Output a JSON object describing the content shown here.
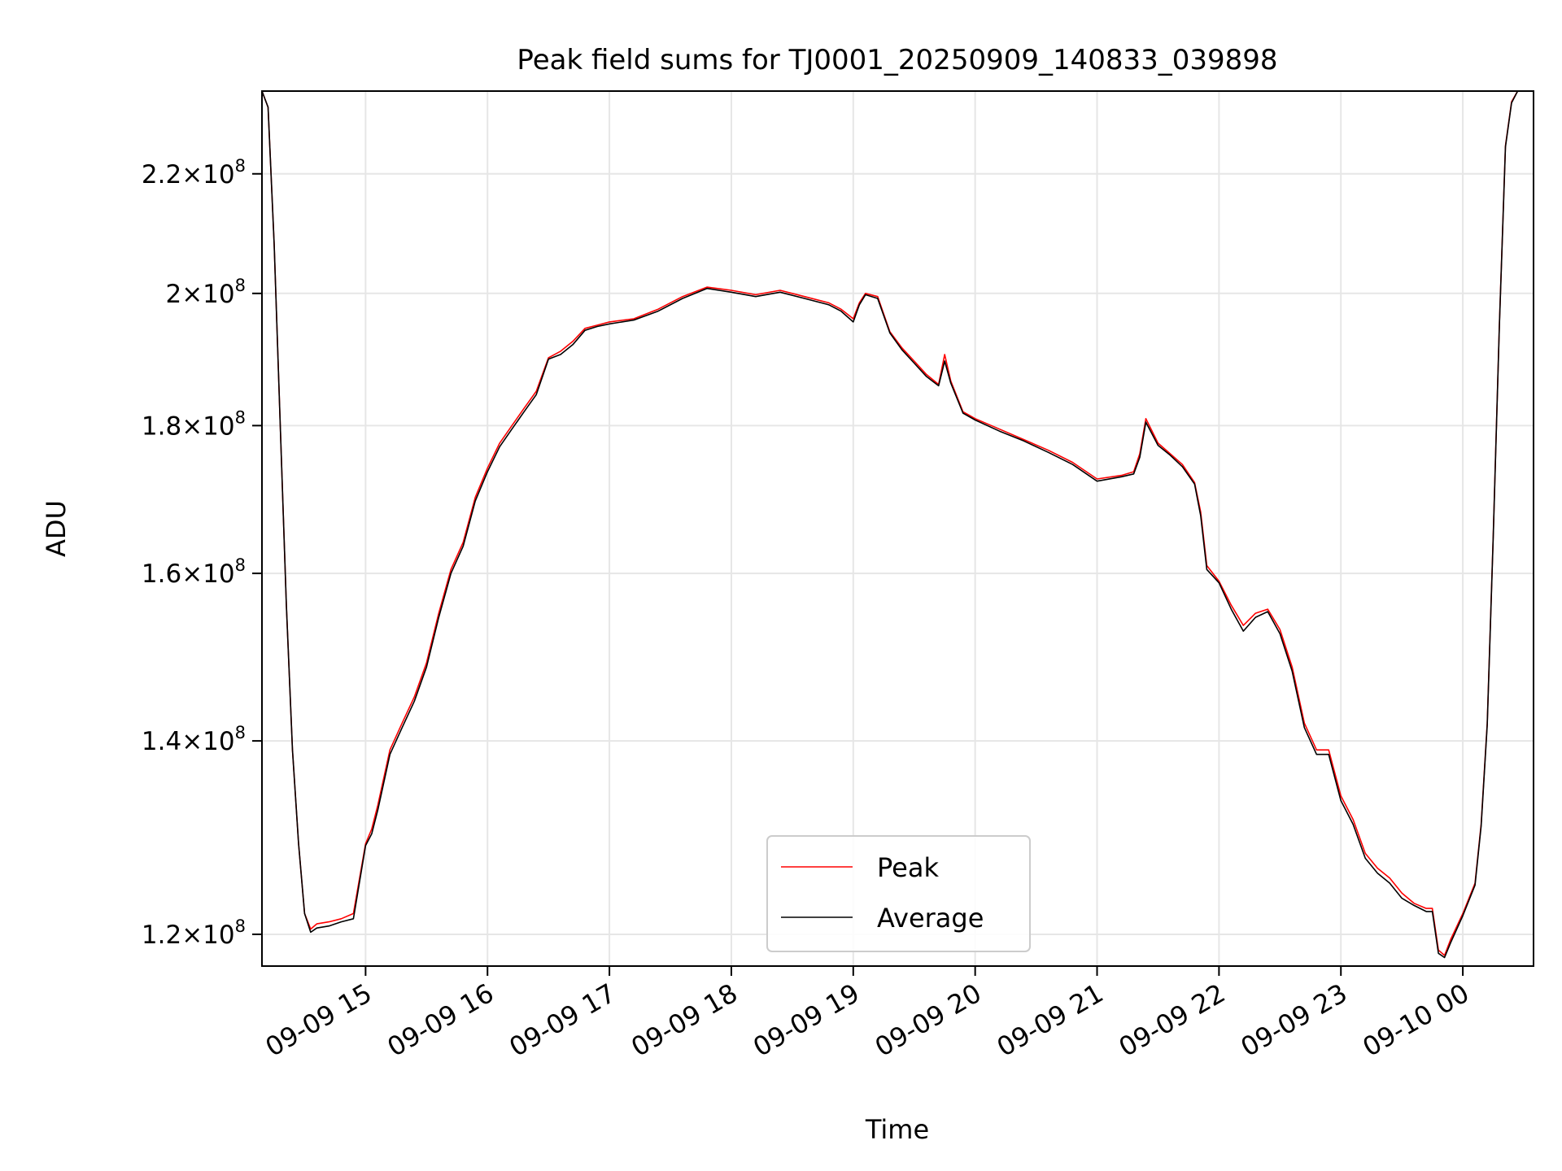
{
  "chart_data": {
    "type": "line",
    "title": "Peak field sums for TJ0001_20250909_140833_039898",
    "xlabel": "Time",
    "ylabel": "ADU",
    "y_scale": "log",
    "ylim": [
      117000000,
      235000000
    ],
    "xlim_hours": [
      14.15,
      24.58
    ],
    "grid": true,
    "legend_position": "lower center",
    "x_ticks": [
      {
        "hour": 15,
        "label": "09-09 15"
      },
      {
        "hour": 16,
        "label": "09-09 16"
      },
      {
        "hour": 17,
        "label": "09-09 17"
      },
      {
        "hour": 18,
        "label": "09-09 18"
      },
      {
        "hour": 19,
        "label": "09-09 19"
      },
      {
        "hour": 20,
        "label": "09-09 20"
      },
      {
        "hour": 21,
        "label": "09-09 21"
      },
      {
        "hour": 22,
        "label": "09-09 22"
      },
      {
        "hour": 23,
        "label": "09-09 23"
      },
      {
        "hour": 24,
        "label": "09-10 00"
      }
    ],
    "y_ticks": [
      {
        "value": 120000000,
        "mantissa": "1.2",
        "exponent": "8"
      },
      {
        "value": 140000000,
        "mantissa": "1.4",
        "exponent": "8"
      },
      {
        "value": 160000000,
        "mantissa": "1.6",
        "exponent": "8"
      },
      {
        "value": 180000000,
        "mantissa": "1.8",
        "exponent": "8"
      },
      {
        "value": 200000000,
        "mantissa": "2",
        "exponent": "8"
      },
      {
        "value": 220000000,
        "mantissa": "2.2",
        "exponent": "8"
      }
    ],
    "x_hours": [
      14.15,
      14.2,
      14.25,
      14.3,
      14.35,
      14.4,
      14.45,
      14.5,
      14.55,
      14.6,
      14.7,
      14.8,
      14.9,
      15.0,
      15.05,
      15.1,
      15.2,
      15.3,
      15.4,
      15.5,
      15.6,
      15.7,
      15.8,
      15.9,
      16.0,
      16.1,
      16.2,
      16.3,
      16.4,
      16.5,
      16.6,
      16.7,
      16.8,
      16.9,
      17.0,
      17.2,
      17.4,
      17.6,
      17.8,
      18.0,
      18.2,
      18.4,
      18.6,
      18.8,
      18.9,
      19.0,
      19.05,
      19.1,
      19.2,
      19.3,
      19.4,
      19.5,
      19.6,
      19.7,
      19.75,
      19.8,
      19.9,
      20.0,
      20.2,
      20.4,
      20.6,
      20.8,
      21.0,
      21.2,
      21.3,
      21.35,
      21.4,
      21.5,
      21.6,
      21.7,
      21.8,
      21.85,
      21.9,
      22.0,
      22.1,
      22.2,
      22.3,
      22.4,
      22.5,
      22.6,
      22.7,
      22.8,
      22.9,
      23.0,
      23.1,
      23.2,
      23.3,
      23.4,
      23.5,
      23.6,
      23.7,
      23.75,
      23.8,
      23.85,
      23.9,
      24.0,
      24.1,
      24.15,
      24.2,
      24.25,
      24.3,
      24.35,
      24.4,
      24.45
    ],
    "series": [
      {
        "name": "Peak",
        "color": "#ff0000",
        "values": [
          235000000,
          232000000,
          208000000,
          180000000,
          156000000,
          139000000,
          129000000,
          122000000,
          120500000,
          121000000,
          121200000,
          121500000,
          122000000,
          129000000,
          130500000,
          133000000,
          139000000,
          142000000,
          145000000,
          149000000,
          155000000,
          160500000,
          164000000,
          170000000,
          174000000,
          177500000,
          180000000,
          182500000,
          185000000,
          190000000,
          191000000,
          192500000,
          194500000,
          195000000,
          195500000,
          196000000,
          197500000,
          199500000,
          201000000,
          200500000,
          199800000,
          200500000,
          199500000,
          198500000,
          197500000,
          196000000,
          198500000,
          200000000,
          199500000,
          194000000,
          191500000,
          189500000,
          187500000,
          186000000,
          190500000,
          186500000,
          182000000,
          181000000,
          179500000,
          178000000,
          176500000,
          174800000,
          172500000,
          173000000,
          173500000,
          176000000,
          181000000,
          177500000,
          176000000,
          174500000,
          172000000,
          168000000,
          161000000,
          159000000,
          156000000,
          153500000,
          155000000,
          155500000,
          153000000,
          148500000,
          142000000,
          139000000,
          139000000,
          134000000,
          131500000,
          128000000,
          126500000,
          125500000,
          124000000,
          123000000,
          122500000,
          122500000,
          118500000,
          118000000,
          119500000,
          122000000,
          125000000,
          131000000,
          142000000,
          165000000,
          195000000,
          225000000,
          233000000,
          235000000
        ]
      },
      {
        "name": "Average",
        "color": "#000000",
        "values": [
          235000000,
          232000000,
          208000000,
          180000000,
          156000000,
          139000000,
          129000000,
          122000000,
          120200000,
          120600000,
          120800000,
          121200000,
          121500000,
          128800000,
          130000000,
          132500000,
          138500000,
          141500000,
          144500000,
          148500000,
          154500000,
          160000000,
          163500000,
          169500000,
          173500000,
          177000000,
          179500000,
          182000000,
          184500000,
          189800000,
          190500000,
          192000000,
          194200000,
          194800000,
          195200000,
          195800000,
          197200000,
          199200000,
          200800000,
          200200000,
          199500000,
          200200000,
          199200000,
          198200000,
          197200000,
          195500000,
          198200000,
          199800000,
          199200000,
          193800000,
          191200000,
          189200000,
          187200000,
          185800000,
          189500000,
          186200000,
          181800000,
          180800000,
          179200000,
          177800000,
          176200000,
          174500000,
          172200000,
          172800000,
          173200000,
          175500000,
          180500000,
          177200000,
          175800000,
          174200000,
          171800000,
          167500000,
          160500000,
          158800000,
          155500000,
          152800000,
          154500000,
          155200000,
          152500000,
          148000000,
          141500000,
          138500000,
          138500000,
          133500000,
          131000000,
          127500000,
          126000000,
          125000000,
          123500000,
          122800000,
          122200000,
          122200000,
          118200000,
          117800000,
          119200000,
          121800000,
          124800000,
          130800000,
          141800000,
          164800000,
          194800000,
          224800000,
          232800000,
          235000000
        ]
      }
    ]
  }
}
